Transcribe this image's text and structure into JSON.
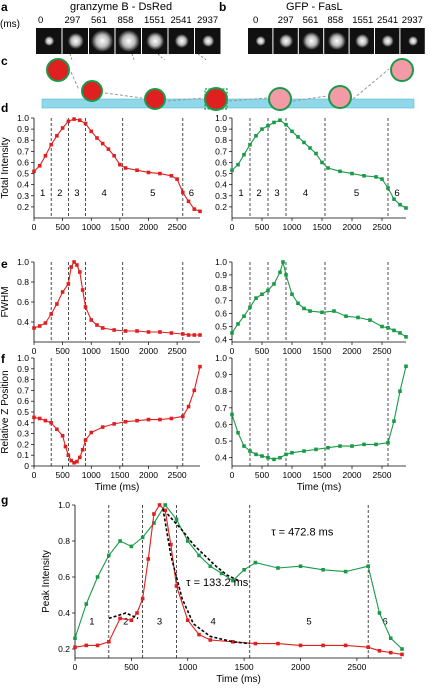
{
  "panels": {
    "a": {
      "letter": "a",
      "title": "granzyme B - DsRed",
      "unit": "(ms)"
    },
    "b": {
      "letter": "b",
      "title": "GFP - FasL"
    },
    "c": {
      "letter": "c"
    },
    "d": {
      "letter": "d"
    },
    "e": {
      "letter": "e"
    },
    "f": {
      "letter": "f"
    },
    "g": {
      "letter": "g"
    }
  },
  "frame_times": [
    "0",
    "297",
    "561",
    "858",
    "1551",
    "2541",
    "2937"
  ],
  "phase_labels": [
    "1",
    "2",
    "3",
    "4",
    "5",
    "6"
  ],
  "colors": {
    "red": "#e02020",
    "green": "#1a9a48",
    "cyan": "#8fd8ea",
    "pink": "#f29aa6"
  },
  "chart_data": [
    {
      "id": "d-left",
      "type": "line",
      "ylabel": "Total Intensity",
      "xlabel": "",
      "ylim": [
        0.1,
        1.0
      ],
      "xlim": [
        0,
        2900
      ],
      "yticks": [
        "0.2",
        "0.3",
        "0.4",
        "0.5",
        "0.6",
        "0.7",
        "0.8",
        "0.9",
        "1.0"
      ],
      "xticks": [
        "0",
        "500",
        "1000",
        "1500",
        "2000",
        "2500"
      ],
      "series": [
        {
          "color": "red",
          "x": [
            0,
            100,
            200,
            300,
            400,
            500,
            600,
            700,
            800,
            900,
            1000,
            1100,
            1200,
            1300,
            1400,
            1500,
            1600,
            1800,
            2000,
            2200,
            2400,
            2500,
            2600,
            2700,
            2800,
            2900
          ],
          "y": [
            0.52,
            0.57,
            0.66,
            0.76,
            0.84,
            0.91,
            0.97,
            0.99,
            0.98,
            0.95,
            0.88,
            0.82,
            0.77,
            0.72,
            0.66,
            0.58,
            0.55,
            0.53,
            0.51,
            0.5,
            0.48,
            0.45,
            0.33,
            0.25,
            0.18,
            0.16
          ]
        }
      ]
    },
    {
      "id": "d-right",
      "type": "line",
      "ylim": [
        0.1,
        1.0
      ],
      "xlim": [
        0,
        2900
      ],
      "yticks": [
        "0.2",
        "0.3",
        "0.4",
        "0.5",
        "0.6",
        "0.7",
        "0.8",
        "0.9",
        "1.0"
      ],
      "xticks": [
        "0",
        "500",
        "1000",
        "1500",
        "2000",
        "2500"
      ],
      "series": [
        {
          "color": "green",
          "x": [
            0,
            100,
            200,
            300,
            400,
            500,
            600,
            700,
            800,
            900,
            1000,
            1100,
            1200,
            1300,
            1400,
            1500,
            1600,
            1800,
            2000,
            2200,
            2400,
            2500,
            2600,
            2700,
            2800,
            2900
          ],
          "y": [
            0.53,
            0.58,
            0.67,
            0.76,
            0.84,
            0.9,
            0.93,
            0.96,
            0.98,
            0.94,
            0.88,
            0.83,
            0.78,
            0.73,
            0.68,
            0.6,
            0.55,
            0.52,
            0.5,
            0.48,
            0.47,
            0.45,
            0.37,
            0.27,
            0.22,
            0.19
          ]
        }
      ]
    },
    {
      "id": "e-left",
      "type": "line",
      "ylabel": "FWHM",
      "ylim": [
        0.2,
        1.0
      ],
      "xlim": [
        0,
        2900
      ],
      "yticks": [
        "0.4",
        "0.6",
        "0.8",
        "1.0"
      ],
      "xticks": [
        "0",
        "500",
        "1000",
        "1500",
        "2000",
        "2500"
      ],
      "series": [
        {
          "color": "red",
          "x": [
            0,
            100,
            200,
            300,
            400,
            500,
            600,
            650,
            700,
            750,
            800,
            850,
            900,
            1000,
            1100,
            1200,
            1400,
            1600,
            1800,
            2000,
            2200,
            2400,
            2600,
            2700,
            2800,
            2900
          ],
          "y": [
            0.34,
            0.36,
            0.39,
            0.48,
            0.58,
            0.7,
            0.78,
            0.95,
            1.0,
            0.97,
            0.9,
            0.72,
            0.55,
            0.42,
            0.37,
            0.34,
            0.32,
            0.31,
            0.31,
            0.3,
            0.3,
            0.29,
            0.28,
            0.27,
            0.27,
            0.27
          ]
        }
      ]
    },
    {
      "id": "e-right",
      "type": "line",
      "ylim": [
        0.38,
        1.0
      ],
      "xlim": [
        0,
        2900
      ],
      "yticks": [
        "0.4",
        "0.5",
        "0.6",
        "0.7",
        "0.8",
        "0.9",
        "1.0"
      ],
      "xticks": [
        "0",
        "500",
        "1000",
        "1500",
        "2000",
        "2500"
      ],
      "series": [
        {
          "color": "green",
          "x": [
            0,
            100,
            200,
            300,
            400,
            500,
            600,
            700,
            800,
            850,
            900,
            1000,
            1100,
            1200,
            1300,
            1500,
            1700,
            1900,
            2100,
            2300,
            2500,
            2600,
            2700,
            2800,
            2900
          ],
          "y": [
            0.45,
            0.52,
            0.58,
            0.65,
            0.72,
            0.75,
            0.78,
            0.83,
            0.92,
            1.0,
            0.9,
            0.75,
            0.68,
            0.64,
            0.62,
            0.61,
            0.62,
            0.58,
            0.57,
            0.55,
            0.5,
            0.49,
            0.47,
            0.45,
            0.42
          ]
        }
      ]
    },
    {
      "id": "f-left",
      "type": "line",
      "ylabel": "Relative Z Position",
      "xlabel": "Time (ms)",
      "ylim": [
        0,
        1.0
      ],
      "xlim": [
        0,
        2900
      ],
      "yticks": [
        "0",
        "0.1",
        "0.2",
        "0.3",
        "0.4",
        "0.5",
        "0.6",
        "0.7",
        "0.8",
        "0.9",
        "1.0"
      ],
      "xticks": [
        "0",
        "500",
        "1000",
        "1500",
        "2000",
        "2500"
      ],
      "series": [
        {
          "color": "red",
          "x": [
            0,
            100,
            200,
            300,
            400,
            500,
            550,
            600,
            650,
            700,
            750,
            800,
            850,
            900,
            1000,
            1200,
            1400,
            1600,
            1800,
            2000,
            2200,
            2400,
            2600,
            2700,
            2800,
            2900
          ],
          "y": [
            0.45,
            0.44,
            0.42,
            0.4,
            0.34,
            0.28,
            0.18,
            0.1,
            0.05,
            0.03,
            0.04,
            0.08,
            0.15,
            0.24,
            0.31,
            0.36,
            0.39,
            0.41,
            0.42,
            0.43,
            0.43,
            0.44,
            0.46,
            0.55,
            0.7,
            0.92
          ]
        }
      ]
    },
    {
      "id": "f-right",
      "type": "line",
      "xlabel": "Time (ms)",
      "ylim": [
        0.35,
        1.0
      ],
      "xlim": [
        0,
        2900
      ],
      "yticks": [
        "0.4",
        "0.5",
        "0.6",
        "0.7",
        "0.8",
        "0.9",
        "1.0"
      ],
      "xticks": [
        "0",
        "500",
        "1000",
        "1500",
        "2000",
        "2500"
      ],
      "series": [
        {
          "color": "green",
          "x": [
            0,
            100,
            200,
            300,
            400,
            500,
            600,
            700,
            800,
            900,
            1000,
            1200,
            1400,
            1600,
            1800,
            2000,
            2200,
            2400,
            2600,
            2700,
            2800,
            2900
          ],
          "y": [
            0.66,
            0.55,
            0.47,
            0.44,
            0.42,
            0.41,
            0.4,
            0.39,
            0.4,
            0.42,
            0.43,
            0.44,
            0.45,
            0.46,
            0.47,
            0.47,
            0.48,
            0.48,
            0.49,
            0.62,
            0.8,
            0.95
          ]
        }
      ]
    },
    {
      "id": "g",
      "type": "line",
      "ylabel": "Peak Intensity",
      "xlabel": "Time (ms)",
      "ylim": [
        0.15,
        1.0
      ],
      "xlim": [
        0,
        2900
      ],
      "yticks": [
        "0.2",
        "0.4",
        "0.6",
        "0.8",
        "1.0"
      ],
      "xticks": [
        "0",
        "500",
        "1000",
        "1500",
        "2000",
        "2500"
      ],
      "annotations": [
        "τ = 472.8 ms",
        "τ = 133.2 ms"
      ],
      "series": [
        {
          "color": "green",
          "x": [
            0,
            100,
            200,
            300,
            400,
            500,
            600,
            700,
            800,
            900,
            1000,
            1100,
            1200,
            1300,
            1400,
            1500,
            1600,
            1800,
            2000,
            2200,
            2400,
            2600,
            2700,
            2800,
            2900
          ],
          "y": [
            0.26,
            0.45,
            0.6,
            0.72,
            0.8,
            0.77,
            0.82,
            0.9,
            1.0,
            0.92,
            0.8,
            0.72,
            0.66,
            0.62,
            0.58,
            0.64,
            0.68,
            0.65,
            0.66,
            0.64,
            0.63,
            0.66,
            0.4,
            0.26,
            0.2
          ]
        },
        {
          "color": "red",
          "x": [
            0,
            100,
            200,
            300,
            400,
            500,
            550,
            600,
            650,
            700,
            750,
            800,
            850,
            900,
            1000,
            1100,
            1200,
            1400,
            1600,
            1800,
            2000,
            2200,
            2400,
            2600,
            2700,
            2800,
            2900
          ],
          "y": [
            0.21,
            0.22,
            0.22,
            0.24,
            0.37,
            0.36,
            0.4,
            0.48,
            0.7,
            0.95,
            1.0,
            0.97,
            0.78,
            0.55,
            0.36,
            0.28,
            0.25,
            0.24,
            0.23,
            0.23,
            0.22,
            0.22,
            0.22,
            0.21,
            0.19,
            0.18,
            0.17
          ]
        }
      ]
    }
  ]
}
